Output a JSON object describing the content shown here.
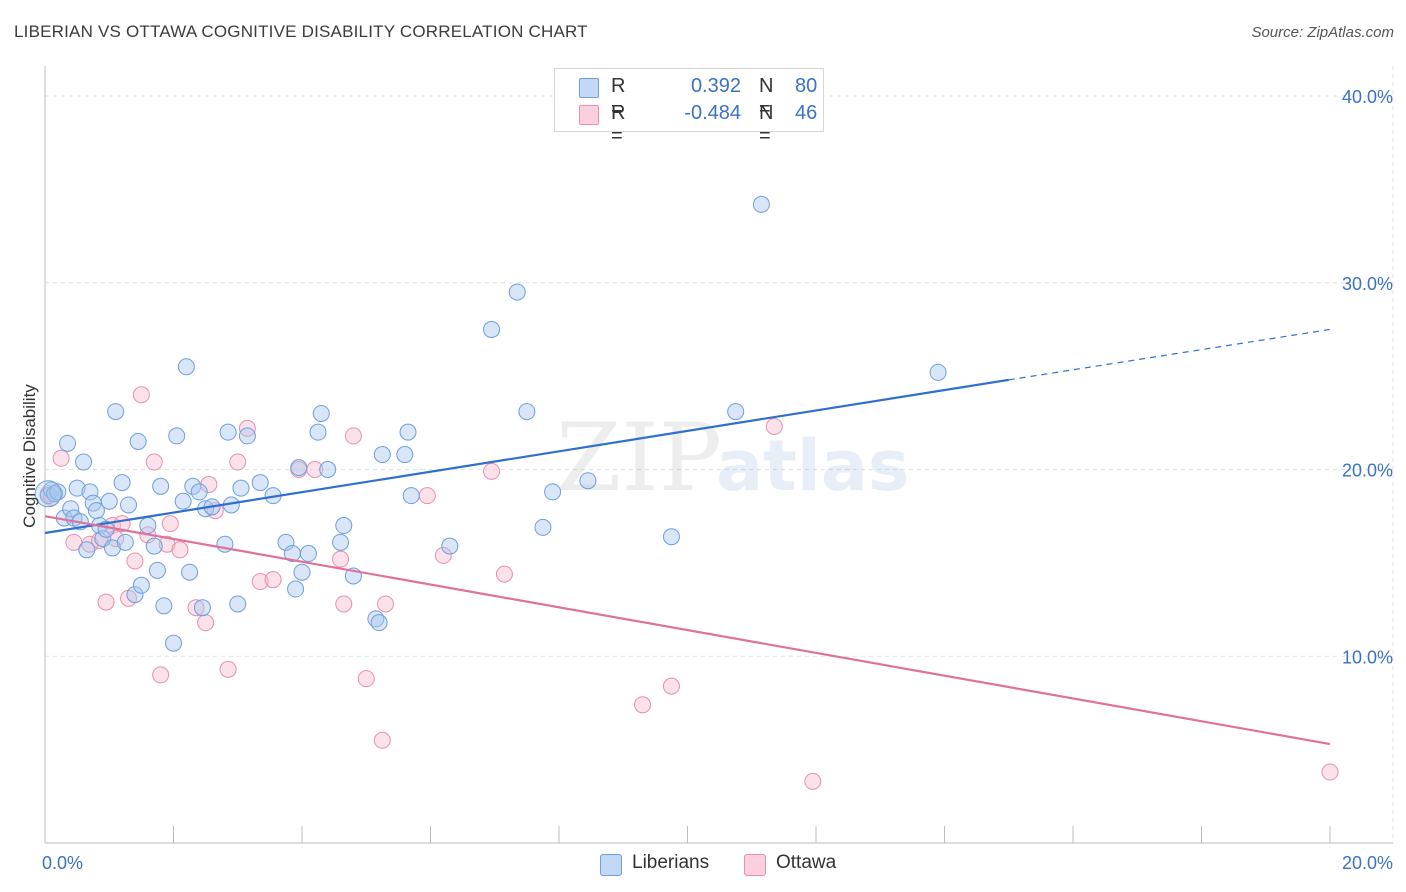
{
  "header": {
    "title": "LIBERIAN VS OTTAWA COGNITIVE DISABILITY CORRELATION CHART",
    "source": "Source: ZipAtlas.com"
  },
  "watermark": {
    "zip": "ZIP",
    "atlas": "atlas"
  },
  "legend": {
    "rows": [
      {
        "r_label": "R =",
        "r_value": "0.392",
        "n_label": "N =",
        "n_value": "80"
      },
      {
        "r_label": "R =",
        "r_value": "-0.484",
        "n_label": "N =",
        "n_value": "46"
      }
    ],
    "bottom": [
      "Liberians",
      "Ottawa"
    ]
  },
  "colors": {
    "liberians_fill": "#a9c8f0",
    "liberians_stroke": "#6d9fdc",
    "liberians_line": "#2f6fce",
    "ottawa_fill": "#f6bfd0",
    "ottawa_stroke": "#e98fab",
    "ottawa_line": "#e0719a",
    "tick_label": "#3a72c4",
    "grid": "#e2e2e2"
  },
  "chart_data": {
    "type": "scatter",
    "xlabel": "",
    "ylabel": "Cognitive Disability",
    "xlim": [
      0,
      20
    ],
    "ylim": [
      0,
      40
    ],
    "x_tick_labels": [
      "0.0%",
      "20.0%"
    ],
    "y_ticks": [
      10,
      20,
      30,
      40
    ],
    "y_tick_labels": [
      "10.0%",
      "20.0%",
      "30.0%",
      "40.0%"
    ],
    "grid": true,
    "legend_position": "top-center",
    "series": [
      {
        "name": "Liberians",
        "r": 0.392,
        "n": 80,
        "trend": {
          "x0": 0,
          "y0": 16.6,
          "x1": 15.0,
          "y1": 24.8,
          "dash_x1": 20,
          "dash_y1": 27.5
        },
        "points": [
          [
            0.05,
            18.6
          ],
          [
            0.1,
            18.9
          ],
          [
            0.15,
            18.7
          ],
          [
            0.2,
            18.8
          ],
          [
            0.3,
            17.4
          ],
          [
            0.35,
            21.4
          ],
          [
            0.4,
            17.9
          ],
          [
            0.45,
            17.4
          ],
          [
            0.5,
            19.0
          ],
          [
            0.55,
            17.2
          ],
          [
            0.6,
            20.4
          ],
          [
            0.65,
            15.7
          ],
          [
            0.7,
            18.8
          ],
          [
            0.75,
            18.2
          ],
          [
            0.8,
            17.8
          ],
          [
            0.85,
            17.0
          ],
          [
            0.9,
            16.3
          ],
          [
            0.95,
            16.8
          ],
          [
            1.0,
            18.3
          ],
          [
            1.05,
            15.8
          ],
          [
            1.1,
            23.1
          ],
          [
            1.2,
            19.3
          ],
          [
            1.25,
            16.1
          ],
          [
            1.3,
            18.1
          ],
          [
            1.4,
            13.3
          ],
          [
            1.45,
            21.5
          ],
          [
            1.5,
            13.8
          ],
          [
            1.6,
            17.0
          ],
          [
            1.7,
            15.9
          ],
          [
            1.75,
            14.6
          ],
          [
            1.8,
            19.1
          ],
          [
            1.85,
            12.7
          ],
          [
            2.0,
            10.7
          ],
          [
            2.05,
            21.8
          ],
          [
            2.15,
            18.3
          ],
          [
            2.25,
            14.5
          ],
          [
            2.2,
            25.5
          ],
          [
            2.3,
            19.1
          ],
          [
            2.4,
            18.8
          ],
          [
            2.45,
            12.6
          ],
          [
            2.5,
            17.9
          ],
          [
            2.6,
            18.0
          ],
          [
            2.8,
            16.0
          ],
          [
            2.85,
            22.0
          ],
          [
            2.9,
            18.1
          ],
          [
            3.0,
            12.8
          ],
          [
            3.05,
            19.0
          ],
          [
            3.15,
            21.8
          ],
          [
            3.35,
            19.3
          ],
          [
            3.55,
            18.6
          ],
          [
            3.75,
            16.1
          ],
          [
            3.85,
            15.5
          ],
          [
            3.9,
            13.6
          ],
          [
            3.95,
            20.1
          ],
          [
            4.0,
            14.5
          ],
          [
            4.1,
            15.5
          ],
          [
            4.25,
            22.0
          ],
          [
            4.3,
            23.0
          ],
          [
            4.4,
            20.0
          ],
          [
            4.6,
            16.1
          ],
          [
            4.65,
            17.0
          ],
          [
            4.8,
            14.3
          ],
          [
            5.15,
            12.0
          ],
          [
            5.2,
            11.8
          ],
          [
            5.25,
            20.8
          ],
          [
            5.6,
            20.8
          ],
          [
            5.65,
            22.0
          ],
          [
            5.7,
            18.6
          ],
          [
            6.3,
            15.9
          ],
          [
            6.95,
            27.5
          ],
          [
            7.35,
            29.5
          ],
          [
            7.5,
            23.1
          ],
          [
            7.75,
            16.9
          ],
          [
            7.9,
            18.8
          ],
          [
            8.45,
            19.4
          ],
          [
            9.75,
            16.4
          ],
          [
            10.75,
            23.1
          ],
          [
            11.15,
            34.2
          ],
          [
            13.9,
            25.2
          ]
        ]
      },
      {
        "name": "Ottawa",
        "r": -0.484,
        "n": 46,
        "trend": {
          "x0": 0,
          "y0": 17.5,
          "x1": 20,
          "y1": 5.3
        },
        "points": [
          [
            0.05,
            18.7
          ],
          [
            0.1,
            18.5
          ],
          [
            0.25,
            20.6
          ],
          [
            0.45,
            16.1
          ],
          [
            0.7,
            16.0
          ],
          [
            0.85,
            16.2
          ],
          [
            0.95,
            12.9
          ],
          [
            1.05,
            17.0
          ],
          [
            1.1,
            16.3
          ],
          [
            1.2,
            17.1
          ],
          [
            1.3,
            13.1
          ],
          [
            1.4,
            15.1
          ],
          [
            1.5,
            24.0
          ],
          [
            1.6,
            16.5
          ],
          [
            1.7,
            20.4
          ],
          [
            1.8,
            9.0
          ],
          [
            1.9,
            16.0
          ],
          [
            1.95,
            17.1
          ],
          [
            2.1,
            15.7
          ],
          [
            2.35,
            12.6
          ],
          [
            2.5,
            11.8
          ],
          [
            2.55,
            19.2
          ],
          [
            2.65,
            17.8
          ],
          [
            2.85,
            9.3
          ],
          [
            3.0,
            20.4
          ],
          [
            3.15,
            22.2
          ],
          [
            3.35,
            14.0
          ],
          [
            3.55,
            14.1
          ],
          [
            3.95,
            20.0
          ],
          [
            4.2,
            20.0
          ],
          [
            4.6,
            15.2
          ],
          [
            4.65,
            12.8
          ],
          [
            4.8,
            21.8
          ],
          [
            5.0,
            8.8
          ],
          [
            5.25,
            5.5
          ],
          [
            5.3,
            12.8
          ],
          [
            5.95,
            18.6
          ],
          [
            6.2,
            15.4
          ],
          [
            6.95,
            19.9
          ],
          [
            7.15,
            14.4
          ],
          [
            9.3,
            7.4
          ],
          [
            9.75,
            8.4
          ],
          [
            11.35,
            22.3
          ],
          [
            11.95,
            3.3
          ],
          [
            20.0,
            3.8
          ]
        ]
      }
    ]
  }
}
